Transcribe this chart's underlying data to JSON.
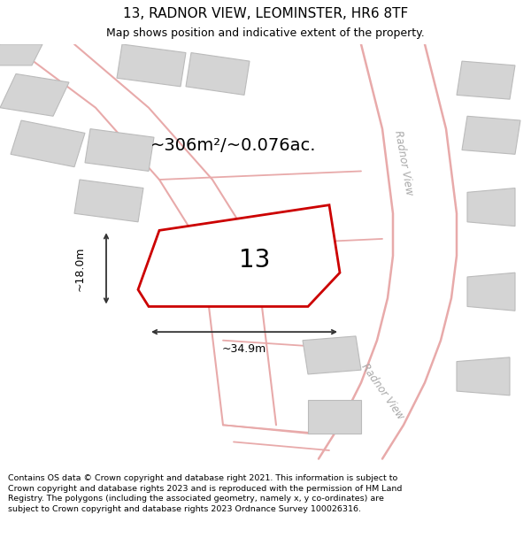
{
  "title": "13, RADNOR VIEW, LEOMINSTER, HR6 8TF",
  "subtitle": "Map shows position and indicative extent of the property.",
  "footer": "Contains OS data © Crown copyright and database right 2021. This information is subject to Crown copyright and database rights 2023 and is reproduced with the permission of HM Land Registry. The polygons (including the associated geometry, namely x, y co-ordinates) are subject to Crown copyright and database rights 2023 Ordnance Survey 100026316.",
  "area_label": "~306m²/~0.076ac.",
  "plot_number": "13",
  "dim_width": "~34.9m",
  "dim_height": "~18.0m",
  "map_bg": "#f2f0f0",
  "plot_fill": "#ffffff",
  "plot_edge": "#cc0000",
  "road_color": "#e8aaaa",
  "building_color": "#d4d4d4",
  "building_edge": "#bbbbbb",
  "dim_color": "#333333",
  "street_label_color": "#aaaaaa",
  "title_fontsize": 11,
  "subtitle_fontsize": 9,
  "footer_fontsize": 6.8
}
